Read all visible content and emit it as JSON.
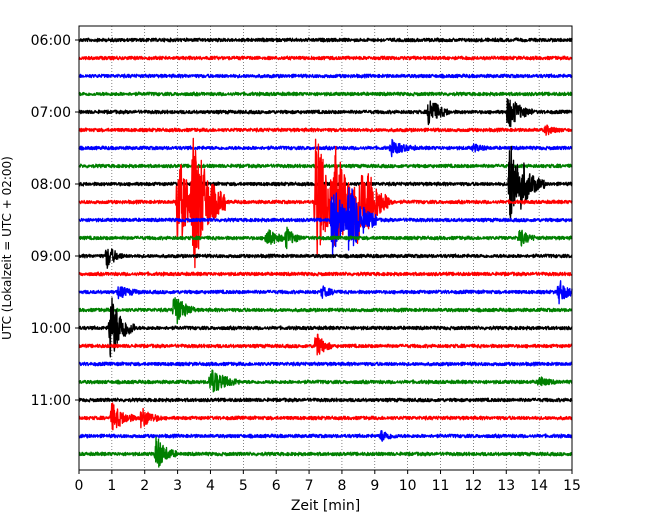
{
  "chart_data": {
    "type": "line",
    "subtype": "helicorder",
    "xlabel": "Zeit  [min]",
    "ylabel": "UTC (Lokalzeit = UTC + 02:00)",
    "xlim": [
      0,
      15
    ],
    "x_ticks": [
      0,
      1,
      2,
      3,
      4,
      5,
      6,
      7,
      8,
      9,
      10,
      11,
      12,
      13,
      14,
      15
    ],
    "y_tick_labels": [
      "06:00",
      "07:00",
      "08:00",
      "09:00",
      "10:00",
      "11:00"
    ],
    "y_tick_rows": [
      0,
      4,
      8,
      12,
      16,
      20
    ],
    "grid": "vertical-dotted",
    "trace_colors": [
      "#000000",
      "#ff0000",
      "#0000ff",
      "#008000"
    ],
    "rows": [
      {
        "label": "06:00",
        "color": "#000000",
        "events": []
      },
      {
        "label": "06:15",
        "color": "#ff0000",
        "events": []
      },
      {
        "label": "06:30",
        "color": "#0000ff",
        "events": []
      },
      {
        "label": "06:45",
        "color": "#008000",
        "events": []
      },
      {
        "label": "07:00",
        "color": "#000000",
        "events": [
          {
            "t": 10.65,
            "amp": 0.9,
            "dur": 0.25
          },
          {
            "t": 13.05,
            "amp": 1.0,
            "dur": 0.3
          }
        ]
      },
      {
        "label": "07:15",
        "color": "#ff0000",
        "events": [
          {
            "t": 14.2,
            "amp": 0.25,
            "dur": 0.2
          }
        ]
      },
      {
        "label": "07:30",
        "color": "#0000ff",
        "events": [
          {
            "t": 9.5,
            "amp": 0.4,
            "dur": 0.3
          },
          {
            "t": 12.0,
            "amp": 0.2,
            "dur": 0.2
          }
        ]
      },
      {
        "label": "07:45",
        "color": "#008000",
        "events": []
      },
      {
        "label": "08:00",
        "color": "#000000",
        "events": [
          {
            "t": 13.1,
            "amp": 2.5,
            "dur": 0.35
          },
          {
            "t": 13.45,
            "amp": 1.5,
            "dur": 0.3
          }
        ]
      },
      {
        "label": "08:15",
        "color": "#ff0000",
        "events": [
          {
            "t": 3.0,
            "amp": 3.0,
            "dur": 0.3
          },
          {
            "t": 3.45,
            "amp": 4.5,
            "dur": 0.4
          },
          {
            "t": 7.2,
            "amp": 4.0,
            "dur": 0.4
          },
          {
            "t": 7.75,
            "amp": 3.5,
            "dur": 0.45
          },
          {
            "t": 8.4,
            "amp": 3.0,
            "dur": 0.4
          },
          {
            "t": 8.8,
            "amp": 2.0,
            "dur": 0.3
          }
        ]
      },
      {
        "label": "08:30",
        "color": "#0000ff",
        "events": [
          {
            "t": 7.7,
            "amp": 2.2,
            "dur": 0.3
          },
          {
            "t": 8.2,
            "amp": 2.4,
            "dur": 0.35
          }
        ]
      },
      {
        "label": "08:45",
        "color": "#008000",
        "events": [
          {
            "t": 5.7,
            "amp": 0.5,
            "dur": 0.3
          },
          {
            "t": 6.3,
            "amp": 0.6,
            "dur": 0.2
          },
          {
            "t": 13.4,
            "amp": 0.5,
            "dur": 0.2
          }
        ]
      },
      {
        "label": "09:00",
        "color": "#000000",
        "events": [
          {
            "t": 0.85,
            "amp": 0.7,
            "dur": 0.2
          }
        ]
      },
      {
        "label": "09:15",
        "color": "#ff0000",
        "events": []
      },
      {
        "label": "09:30",
        "color": "#0000ff",
        "events": [
          {
            "t": 1.2,
            "amp": 0.3,
            "dur": 0.3
          },
          {
            "t": 7.4,
            "amp": 0.3,
            "dur": 0.2
          },
          {
            "t": 14.6,
            "amp": 0.7,
            "dur": 0.2
          }
        ]
      },
      {
        "label": "09:45",
        "color": "#008000",
        "events": [
          {
            "t": 2.9,
            "amp": 1.0,
            "dur": 0.25
          }
        ]
      },
      {
        "label": "10:00",
        "color": "#000000",
        "events": [
          {
            "t": 0.95,
            "amp": 2.0,
            "dur": 0.3
          }
        ]
      },
      {
        "label": "10:15",
        "color": "#ff0000",
        "events": [
          {
            "t": 7.2,
            "amp": 0.8,
            "dur": 0.2
          }
        ]
      },
      {
        "label": "10:30",
        "color": "#0000ff",
        "events": []
      },
      {
        "label": "10:45",
        "color": "#008000",
        "events": [
          {
            "t": 4.0,
            "amp": 0.8,
            "dur": 0.35
          },
          {
            "t": 14.0,
            "amp": 0.3,
            "dur": 0.2
          }
        ]
      },
      {
        "label": "11:00",
        "color": "#000000",
        "events": []
      },
      {
        "label": "11:15",
        "color": "#ff0000",
        "events": [
          {
            "t": 1.0,
            "amp": 0.8,
            "dur": 0.3
          },
          {
            "t": 1.9,
            "amp": 0.6,
            "dur": 0.25
          }
        ]
      },
      {
        "label": "11:30",
        "color": "#0000ff",
        "events": [
          {
            "t": 9.2,
            "amp": 0.3,
            "dur": 0.2
          }
        ]
      },
      {
        "label": "11:45",
        "color": "#008000",
        "events": [
          {
            "t": 2.35,
            "amp": 1.0,
            "dur": 0.25
          }
        ]
      }
    ]
  }
}
